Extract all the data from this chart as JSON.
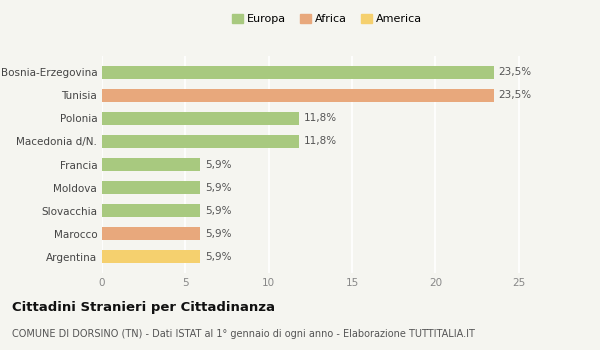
{
  "categories": [
    "Bosnia-Erzegovina",
    "Tunisia",
    "Polonia",
    "Macedonia d/N.",
    "Francia",
    "Moldova",
    "Slovacchia",
    "Marocco",
    "Argentina"
  ],
  "values": [
    23.5,
    23.5,
    11.8,
    11.8,
    5.9,
    5.9,
    5.9,
    5.9,
    5.9
  ],
  "labels": [
    "23,5%",
    "23,5%",
    "11,8%",
    "11,8%",
    "5,9%",
    "5,9%",
    "5,9%",
    "5,9%",
    "5,9%"
  ],
  "colors": [
    "#a8c97f",
    "#e8a87c",
    "#a8c97f",
    "#a8c97f",
    "#a8c97f",
    "#a8c97f",
    "#a8c97f",
    "#e8a87c",
    "#f5d06e"
  ],
  "legend": [
    {
      "label": "Europa",
      "color": "#a8c97f"
    },
    {
      "label": "Africa",
      "color": "#e8a87c"
    },
    {
      "label": "America",
      "color": "#f5d06e"
    }
  ],
  "xlim": [
    0,
    27
  ],
  "xticks": [
    0,
    5,
    10,
    15,
    20,
    25
  ],
  "title": "Cittadini Stranieri per Cittadinanza",
  "subtitle": "COMUNE DI DORSINO (TN) - Dati ISTAT al 1° gennaio di ogni anno - Elaborazione TUTTITALIA.IT",
  "background_color": "#f5f5f0",
  "grid_color": "#ffffff",
  "bar_height": 0.55,
  "title_fontsize": 9.5,
  "subtitle_fontsize": 7,
  "label_fontsize": 7.5,
  "tick_fontsize": 7.5,
  "legend_fontsize": 8
}
